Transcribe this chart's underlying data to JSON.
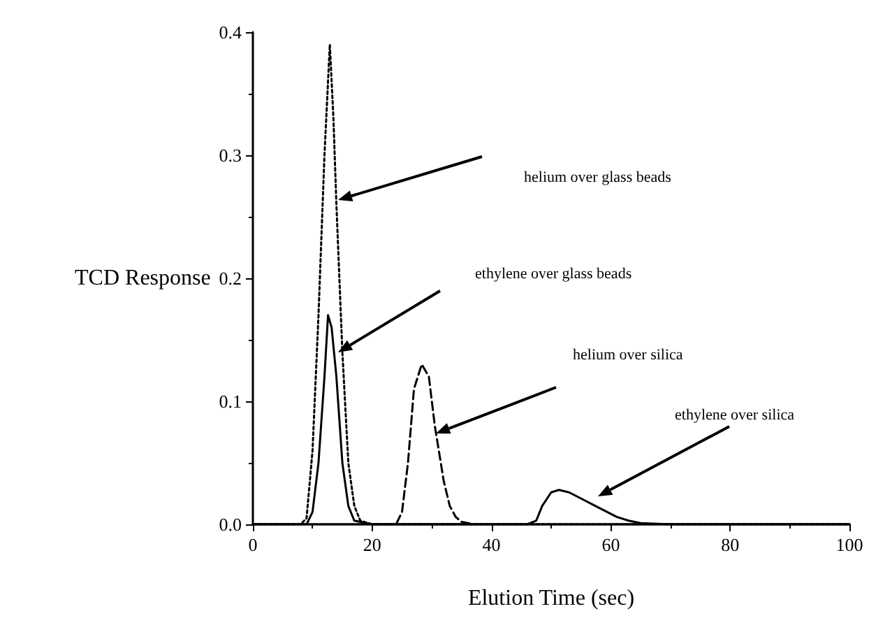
{
  "chart_data": {
    "type": "line",
    "xlabel": "Elution Time (sec)",
    "ylabel": "TCD Response",
    "xlim": [
      0,
      100
    ],
    "xticks": [
      0,
      20,
      40,
      60,
      80,
      100
    ],
    "ylim": [
      0,
      0.4
    ],
    "yticks": [
      {
        "value": 0,
        "label": "0.0"
      },
      0.1,
      0.2,
      0.3,
      0.4
    ],
    "grid": false,
    "marker": "none",
    "series": [
      {
        "color": "#000000",
        "line_style": "dotted",
        "x": [
          0,
          8,
          9,
          10,
          11,
          12,
          12.9,
          13.5,
          14,
          15,
          16,
          17,
          18,
          20,
          100
        ],
        "values": [
          0,
          0,
          0.005,
          0.06,
          0.17,
          0.3,
          0.39,
          0.33,
          0.26,
          0.14,
          0.05,
          0.015,
          0.003,
          0,
          0
        ]
      },
      {
        "color": "#000000",
        "line_style": "solid",
        "x": [
          0,
          9,
          10,
          11,
          12,
          12.6,
          13.2,
          14,
          15,
          16,
          17,
          20,
          100
        ],
        "values": [
          0,
          0,
          0.01,
          0.05,
          0.12,
          0.17,
          0.16,
          0.12,
          0.05,
          0.015,
          0.003,
          0,
          0
        ]
      },
      {
        "color": "#000000",
        "line_style": "dashed",
        "x": [
          20,
          24,
          25,
          26,
          27,
          28.3,
          29.5,
          30.5,
          32,
          33,
          34,
          35,
          37
        ],
        "values": [
          0,
          0,
          0.01,
          0.05,
          0.11,
          0.13,
          0.12,
          0.08,
          0.035,
          0.015,
          0.006,
          0.002,
          0
        ]
      },
      {
        "color": "#000000",
        "line_style": "solid",
        "x": [
          0,
          46,
          47.5,
          48.5,
          50,
          51.3,
          53,
          55,
          57,
          59,
          61,
          63,
          65,
          70,
          100
        ],
        "values": [
          0,
          0,
          0.003,
          0.015,
          0.026,
          0.028,
          0.026,
          0.021,
          0.016,
          0.011,
          0.006,
          0.003,
          0.001,
          0,
          0
        ]
      }
    ],
    "annotations": [
      "helium over glass beads",
      "ethylene over glass beads",
      "helium over silica",
      "ethylene over silica"
    ]
  }
}
